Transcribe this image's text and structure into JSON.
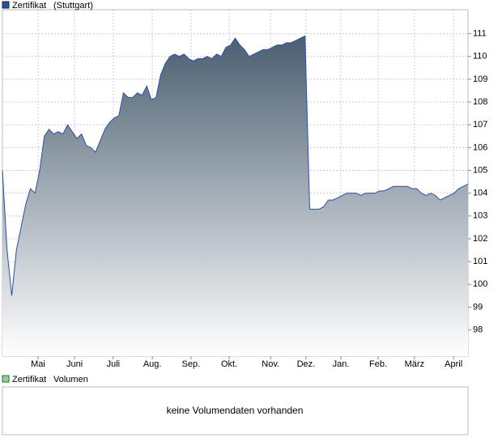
{
  "chart_data": {
    "type": "area",
    "series": [
      {
        "name": "Zertifikat",
        "exchange": "(Stuttgart)",
        "color": "#2a4fa8",
        "values": [
          105,
          101.5,
          99.5,
          101.5,
          102.5,
          103.5,
          104.2,
          104,
          105,
          106.5,
          106.8,
          106.6,
          106.7,
          106.6,
          107,
          106.7,
          106.4,
          106.6,
          106.1,
          106,
          105.8,
          106.3,
          106.8,
          107.1,
          107.3,
          107.4,
          108.4,
          108.2,
          108.2,
          108.4,
          108.3,
          108.7,
          108.1,
          108.2,
          109.2,
          109.7,
          110,
          110.1,
          110,
          110.1,
          109.9,
          109.8,
          109.9,
          109.9,
          110,
          109.9,
          110.1,
          110,
          110.4,
          110.5,
          110.8,
          110.5,
          110.3,
          110,
          110.1,
          110.2,
          110.3,
          110.3,
          110.4,
          110.5,
          110.5,
          110.6,
          110.6,
          110.7,
          110.8,
          110.9,
          103.3,
          103.3,
          103.3,
          103.4,
          103.7,
          103.7,
          103.8,
          103.9,
          104,
          104,
          104,
          103.9,
          104,
          104,
          104,
          104.1,
          104.1,
          104.2,
          104.3,
          104.3,
          104.3,
          104.3,
          104.2,
          104.2,
          104,
          103.9,
          104,
          103.9,
          103.7,
          103.8,
          103.9,
          104,
          104.2,
          104.3,
          104.4
        ]
      }
    ],
    "xticks": [
      {
        "value": 7.65,
        "label": "Mai"
      },
      {
        "value": 15.5,
        "label": "Juni"
      },
      {
        "value": 23.8,
        "label": "Juli"
      },
      {
        "value": 32.2,
        "label": "Aug."
      },
      {
        "value": 40.5,
        "label": "Sep."
      },
      {
        "value": 48.7,
        "label": "Okt."
      },
      {
        "value": 57.6,
        "label": "Nov."
      },
      {
        "value": 65.2,
        "label": "Dez."
      },
      {
        "value": 72.7,
        "label": "Jan."
      },
      {
        "value": 80.7,
        "label": "Feb."
      },
      {
        "value": 88.5,
        "label": "März"
      },
      {
        "value": 96.9,
        "label": "April"
      }
    ],
    "ylim": [
      96.85,
      112.05
    ],
    "yticks": [
      98,
      99,
      100,
      101,
      102,
      103,
      104,
      105,
      106,
      107,
      108,
      109,
      110,
      111
    ],
    "grid": true
  },
  "volume_panel": {
    "series_name": "Zertifikat",
    "label": "Volumen",
    "color": "#8fd18f",
    "message": "keine Volumendaten vorhanden"
  }
}
